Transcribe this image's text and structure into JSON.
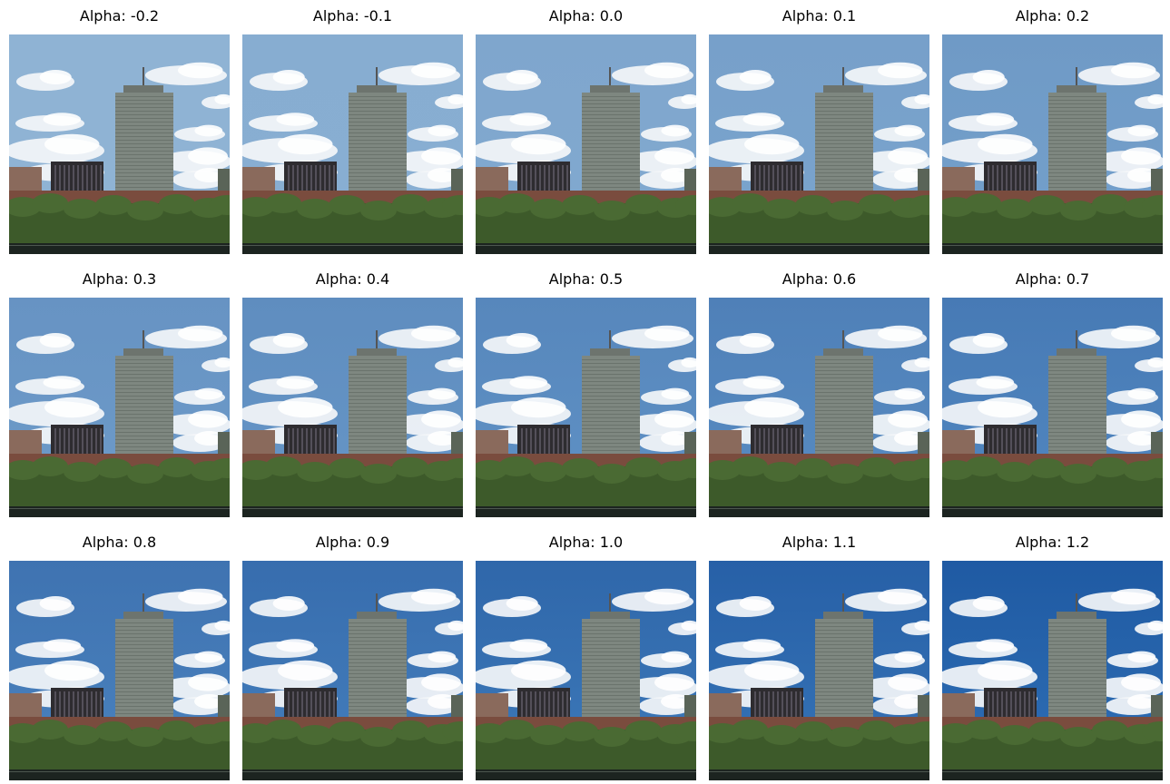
{
  "figure": {
    "panels": [
      {
        "title": "Alpha: -0.2",
        "alpha": -0.2
      },
      {
        "title": "Alpha: -0.1",
        "alpha": -0.1
      },
      {
        "title": "Alpha: 0.0",
        "alpha": 0.0
      },
      {
        "title": "Alpha: 0.1",
        "alpha": 0.1
      },
      {
        "title": "Alpha: 0.2",
        "alpha": 0.2
      },
      {
        "title": "Alpha: 0.3",
        "alpha": 0.3
      },
      {
        "title": "Alpha: 0.4",
        "alpha": 0.4
      },
      {
        "title": "Alpha: 0.5",
        "alpha": 0.5
      },
      {
        "title": "Alpha: 0.6",
        "alpha": 0.6
      },
      {
        "title": "Alpha: 0.7",
        "alpha": 0.7
      },
      {
        "title": "Alpha: 0.8",
        "alpha": 0.8
      },
      {
        "title": "Alpha: 0.9",
        "alpha": 0.9
      },
      {
        "title": "Alpha: 1.0",
        "alpha": 1.0
      },
      {
        "title": "Alpha: 1.1",
        "alpha": 1.1
      },
      {
        "title": "Alpha: 1.2",
        "alpha": 1.2
      }
    ]
  },
  "colors": {
    "sky_low_alpha": "#8fb3d4",
    "sky_high_alpha": "#2f6fb5",
    "tower": "#7e8780",
    "trees": "#3d5a2a",
    "water": "#1c2420"
  }
}
